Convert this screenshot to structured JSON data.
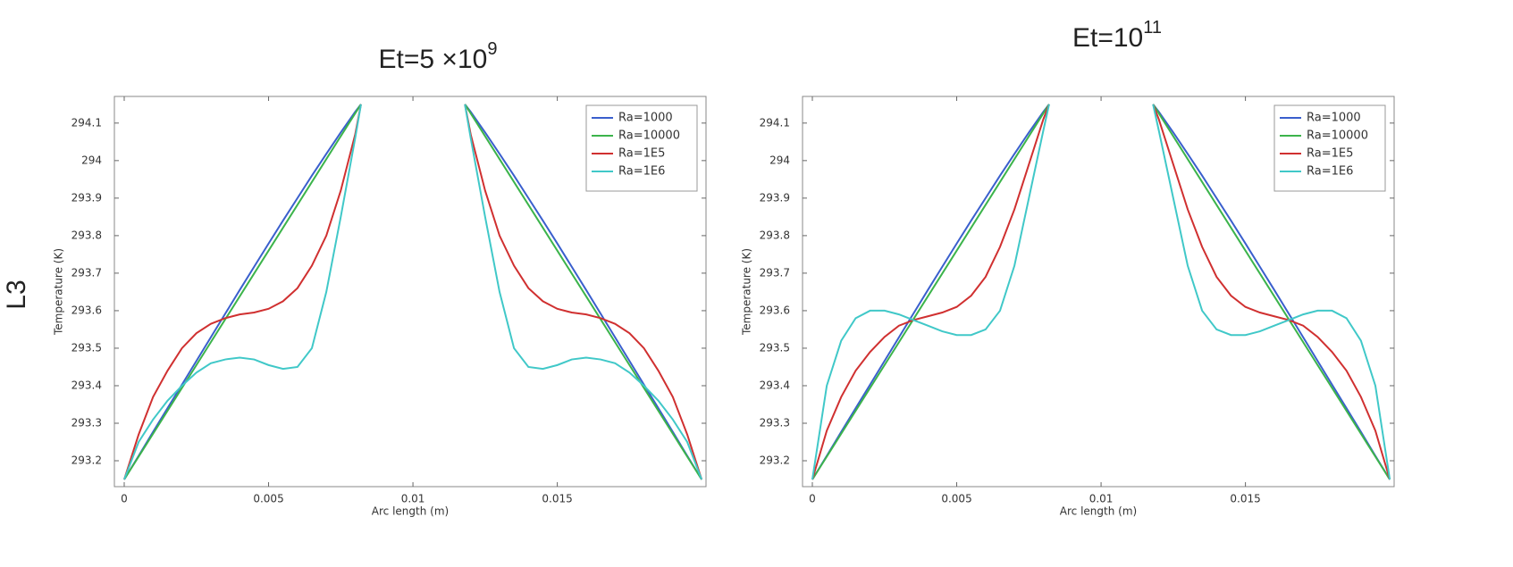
{
  "row_label": "L3",
  "chart_data": [
    {
      "type": "line",
      "title": {
        "base": "Et=5  ×10",
        "exponent": "9"
      },
      "x_label": "Arc length (m)",
      "y_label": "Temperature (K)",
      "x": [
        0,
        0.0005,
        0.001,
        0.0015,
        0.002,
        0.0025,
        0.003,
        0.0035,
        0.004,
        0.0045,
        0.005,
        0.0055,
        0.006,
        0.0065,
        0.007,
        0.0075,
        0.008,
        0.0082,
        null,
        0.0118,
        0.012,
        0.0125,
        0.013,
        0.0135,
        0.014,
        0.0145,
        0.015,
        0.0155,
        0.016,
        0.0165,
        0.017,
        0.0175,
        0.018,
        0.0185,
        0.019,
        0.0195,
        0.02
      ],
      "xlim": [
        -0.00034,
        0.02015
      ],
      "xticks": [
        0,
        0.005,
        0.01,
        0.015
      ],
      "ylim": [
        293.131,
        294.171
      ],
      "yticks": [
        293.2,
        293.3,
        293.4,
        293.5,
        293.6,
        293.7,
        293.8,
        293.9,
        294,
        294.1
      ],
      "legend": "upper right",
      "series": [
        {
          "name": "Ra=1000",
          "color": "#3a5fcd",
          "values": [
            293.15,
            293.213,
            293.277,
            293.34,
            293.403,
            293.466,
            293.529,
            293.592,
            293.655,
            293.717,
            293.779,
            293.84,
            293.9,
            293.96,
            294.018,
            294.075,
            294.13,
            294.15,
            null,
            294.15,
            294.13,
            294.075,
            294.018,
            293.96,
            293.9,
            293.84,
            293.779,
            293.717,
            293.655,
            293.592,
            293.529,
            293.466,
            293.403,
            293.34,
            293.277,
            293.213,
            293.15
          ]
        },
        {
          "name": "Ra=10000",
          "color": "#3cb44b",
          "values": [
            293.15,
            293.211,
            293.272,
            293.333,
            293.394,
            293.455,
            293.516,
            293.577,
            293.638,
            293.699,
            293.76,
            293.821,
            293.882,
            293.943,
            294.004,
            294.065,
            294.126,
            294.15,
            null,
            294.15,
            294.126,
            294.065,
            294.004,
            293.943,
            293.882,
            293.821,
            293.76,
            293.699,
            293.638,
            293.577,
            293.516,
            293.455,
            293.394,
            293.333,
            293.272,
            293.211,
            293.15
          ]
        },
        {
          "name": "Ra=1E5",
          "color": "#d03030",
          "values": [
            293.15,
            293.27,
            293.37,
            293.44,
            293.5,
            293.54,
            293.565,
            293.58,
            293.59,
            293.595,
            293.605,
            293.625,
            293.66,
            293.72,
            293.8,
            293.92,
            294.07,
            294.15,
            null,
            294.15,
            294.07,
            293.92,
            293.8,
            293.72,
            293.66,
            293.625,
            293.605,
            293.595,
            293.59,
            293.58,
            293.565,
            293.54,
            293.5,
            293.44,
            293.37,
            293.27,
            293.15
          ]
        },
        {
          "name": "Ra=1E6",
          "color": "#40c8c8",
          "values": [
            293.15,
            293.25,
            293.31,
            293.36,
            293.4,
            293.435,
            293.46,
            293.47,
            293.475,
            293.47,
            293.455,
            293.445,
            293.45,
            293.5,
            293.65,
            293.85,
            294.06,
            294.15,
            null,
            294.15,
            294.06,
            293.85,
            293.65,
            293.5,
            293.45,
            293.445,
            293.455,
            293.47,
            293.475,
            293.47,
            293.46,
            293.435,
            293.4,
            293.36,
            293.31,
            293.25,
            293.15
          ]
        }
      ]
    },
    {
      "type": "line",
      "title": {
        "base": "Et=10",
        "exponent": "11"
      },
      "x_label": "Arc length (m)",
      "y_label": "Temperature (K)",
      "x": [
        0,
        0.0005,
        0.001,
        0.0015,
        0.002,
        0.0025,
        0.003,
        0.0035,
        0.004,
        0.0045,
        0.005,
        0.0055,
        0.006,
        0.0065,
        0.007,
        0.0075,
        0.008,
        0.0082,
        null,
        0.0118,
        0.012,
        0.0125,
        0.013,
        0.0135,
        0.014,
        0.0145,
        0.015,
        0.0155,
        0.016,
        0.0165,
        0.017,
        0.0175,
        0.018,
        0.0185,
        0.019,
        0.0195,
        0.02
      ],
      "xlim": [
        -0.00034,
        0.02015
      ],
      "xticks": [
        0,
        0.005,
        0.01,
        0.015
      ],
      "ylim": [
        293.131,
        294.171
      ],
      "yticks": [
        293.2,
        293.3,
        293.4,
        293.5,
        293.6,
        293.7,
        293.8,
        293.9,
        294,
        294.1
      ],
      "legend": "upper right",
      "series": [
        {
          "name": "Ra=1000",
          "color": "#3a5fcd",
          "values": [
            293.15,
            293.213,
            293.277,
            293.34,
            293.403,
            293.466,
            293.529,
            293.592,
            293.655,
            293.717,
            293.779,
            293.84,
            293.9,
            293.96,
            294.018,
            294.075,
            294.13,
            294.15,
            null,
            294.15,
            294.13,
            294.075,
            294.018,
            293.96,
            293.9,
            293.84,
            293.779,
            293.717,
            293.655,
            293.592,
            293.529,
            293.466,
            293.403,
            293.34,
            293.277,
            293.213,
            293.15
          ]
        },
        {
          "name": "Ra=10000",
          "color": "#3cb44b",
          "values": [
            293.15,
            293.211,
            293.272,
            293.333,
            293.394,
            293.455,
            293.516,
            293.577,
            293.638,
            293.699,
            293.76,
            293.821,
            293.882,
            293.943,
            294.004,
            294.065,
            294.126,
            294.15,
            null,
            294.15,
            294.126,
            294.065,
            294.004,
            293.943,
            293.882,
            293.821,
            293.76,
            293.699,
            293.638,
            293.577,
            293.516,
            293.455,
            293.394,
            293.333,
            293.272,
            293.211,
            293.15
          ]
        },
        {
          "name": "Ra=1E5",
          "color": "#d03030",
          "values": [
            293.15,
            293.28,
            293.37,
            293.44,
            293.49,
            293.53,
            293.56,
            293.575,
            293.585,
            293.595,
            293.61,
            293.64,
            293.69,
            293.77,
            293.87,
            293.99,
            294.11,
            294.15,
            null,
            294.15,
            294.11,
            293.99,
            293.87,
            293.77,
            293.69,
            293.64,
            293.61,
            293.595,
            293.585,
            293.575,
            293.56,
            293.53,
            293.49,
            293.44,
            293.37,
            293.28,
            293.15
          ]
        },
        {
          "name": "Ra=1E6",
          "color": "#40c8c8",
          "values": [
            293.15,
            293.4,
            293.52,
            293.58,
            293.6,
            293.6,
            293.59,
            293.575,
            293.56,
            293.545,
            293.535,
            293.535,
            293.55,
            293.6,
            293.72,
            293.9,
            294.08,
            294.15,
            null,
            294.15,
            294.08,
            293.9,
            293.72,
            293.6,
            293.55,
            293.535,
            293.535,
            293.545,
            293.56,
            293.575,
            293.59,
            293.6,
            293.6,
            293.58,
            293.52,
            293.4,
            293.15
          ]
        }
      ]
    }
  ]
}
